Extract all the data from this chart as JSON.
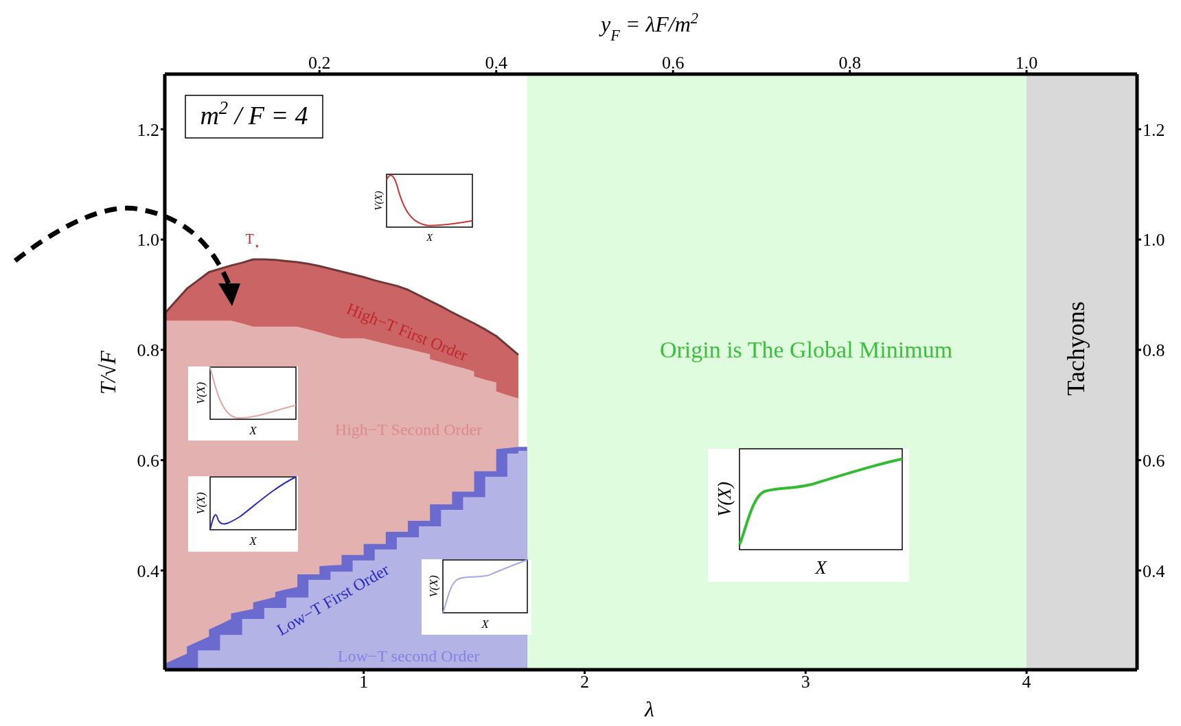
{
  "chart_data": {
    "type": "area",
    "xlabel": "λ",
    "ylabel": "T/√F",
    "x2label": "y$_{F}$ = λF/m$^{2}$",
    "xlim": [
      0.1,
      4.5
    ],
    "xticks": [
      1,
      2,
      3,
      4
    ],
    "x2lim": [
      0.025,
      1.125
    ],
    "x2ticks": [
      0.2,
      0.4,
      0.6,
      0.8,
      {
        "value": 1.0,
        "label": "1.0"
      }
    ],
    "ylim": [
      0.22,
      1.3
    ],
    "yticks": [
      0.4,
      0.6,
      0.8,
      {
        "value": 1.0,
        "label": "1.0"
      },
      1.2
    ],
    "y2lim": [
      0.22,
      1.3
    ],
    "y2ticks": [
      0.4,
      0.6,
      0.8,
      {
        "value": 1.0,
        "label": "1.0"
      },
      1.2
    ],
    "x": [
      0.1,
      0.2,
      0.2,
      0.25,
      0.25,
      0.3,
      0.3,
      0.35,
      0.35,
      0.4,
      0.4,
      0.45,
      0.45,
      0.5,
      0.5,
      0.55,
      0.55,
      0.6,
      0.6,
      0.65,
      0.65,
      0.7,
      0.7,
      0.75,
      0.75,
      0.8,
      0.8,
      0.85,
      0.85,
      0.9,
      0.9,
      0.95,
      0.95,
      1.0,
      1.0,
      1.05,
      1.05,
      1.1,
      1.1,
      1.15,
      1.15,
      1.2,
      1.2,
      1.25,
      1.25,
      1.3,
      1.3,
      1.35,
      1.35,
      1.4,
      1.4,
      1.45,
      1.45,
      1.5,
      1.5,
      1.55,
      1.55,
      1.6,
      1.6,
      1.65,
      1.65,
      1.7,
      1.7,
      1.74
    ],
    "series": [
      {
        "name": "High−T First Order",
        "color": "#cb6464",
        "values": [
          0.866,
          0.911,
          0.911,
          0.926,
          0.926,
          0.941,
          0.941,
          0.947,
          0.947,
          0.953,
          0.953,
          0.958,
          0.958,
          0.964,
          0.964,
          0.964,
          0.964,
          0.963,
          0.963,
          0.961,
          0.961,
          0.959,
          0.959,
          0.956,
          0.956,
          0.952,
          0.952,
          0.947,
          0.947,
          0.942,
          0.942,
          0.937,
          0.937,
          0.932,
          0.932,
          0.926,
          0.926,
          0.921,
          0.921,
          0.916,
          0.916,
          0.909,
          0.909,
          0.899,
          0.899,
          0.889,
          0.889,
          0.879,
          0.879,
          0.868,
          0.868,
          0.858,
          0.858,
          0.848,
          0.848,
          0.837,
          0.837,
          0.825,
          0.825,
          0.808,
          0.808,
          0.791,
          null,
          null
        ]
      },
      {
        "name": "High−T Second Order",
        "color": "#e4b1b1",
        "values": [
          0.853,
          0.853,
          0.853,
          0.853,
          0.853,
          0.853,
          0.853,
          0.853,
          0.853,
          0.853,
          0.853,
          0.848,
          0.848,
          0.842,
          0.842,
          0.842,
          0.842,
          0.842,
          0.842,
          0.842,
          0.842,
          0.842,
          0.842,
          0.837,
          0.837,
          0.832,
          0.832,
          0.826,
          0.826,
          0.821,
          0.821,
          0.821,
          0.821,
          0.821,
          0.821,
          0.816,
          0.816,
          0.811,
          0.811,
          0.806,
          0.806,
          0.802,
          0.802,
          0.797,
          0.797,
          0.792,
          0.783,
          0.778,
          0.778,
          0.772,
          0.772,
          0.767,
          0.767,
          0.761,
          0.752,
          0.746,
          0.746,
          0.741,
          0.725,
          0.718,
          0.718,
          0.712,
          null,
          null
        ]
      },
      {
        "name": "Low−T First Order",
        "color": "#6a6acf",
        "values": [
          0.231,
          0.249,
          0.262,
          0.271,
          0.271,
          0.28,
          0.293,
          0.302,
          0.302,
          0.312,
          0.322,
          0.326,
          0.326,
          0.33,
          0.342,
          0.347,
          0.347,
          0.352,
          0.361,
          0.366,
          0.366,
          0.37,
          0.393,
          0.393,
          0.393,
          0.393,
          0.408,
          0.409,
          0.409,
          0.41,
          0.428,
          0.428,
          0.428,
          0.428,
          0.448,
          0.448,
          0.448,
          0.448,
          0.47,
          0.47,
          0.47,
          0.47,
          0.49,
          0.49,
          0.49,
          0.49,
          0.52,
          0.52,
          0.52,
          0.52,
          0.543,
          0.543,
          0.543,
          0.543,
          0.58,
          0.58,
          0.58,
          0.58,
          0.62,
          0.622,
          0.622,
          0.624,
          0.624,
          0.624
        ]
      },
      {
        "name": "Low−T second Order",
        "color": "#b3b3e6",
        "values": [
          null,
          null,
          null,
          null,
          0.255,
          0.255,
          0.255,
          0.255,
          0.283,
          0.283,
          0.283,
          0.283,
          0.312,
          0.312,
          0.312,
          0.312,
          0.332,
          0.332,
          0.332,
          0.332,
          0.351,
          0.351,
          0.351,
          0.351,
          0.383,
          0.383,
          0.383,
          0.383,
          0.398,
          0.398,
          0.398,
          0.398,
          0.418,
          0.418,
          0.418,
          0.418,
          0.438,
          0.438,
          0.438,
          0.438,
          0.46,
          0.46,
          0.46,
          0.46,
          0.48,
          0.48,
          0.48,
          0.48,
          0.51,
          0.51,
          0.51,
          0.51,
          0.533,
          0.533,
          0.533,
          0.533,
          0.57,
          0.57,
          0.57,
          0.57,
          0.612,
          0.612,
          0.617,
          0.617
        ]
      }
    ],
    "bands": [
      {
        "axis": "x",
        "from": 1.74,
        "to": 4,
        "label": "Origin is The Global Minimum",
        "color": "#dffcdf"
      },
      {
        "axis": "x",
        "from": 4,
        "to": 4.5,
        "label": "Tachyons",
        "color": "#d9d9d9"
      }
    ],
    "annotations": [
      "m$^{2}$ / F = 4",
      "T$_{⋆}$",
      "V(X)",
      "X",
      "V(X)",
      "X",
      "V(X)",
      "X",
      "V(X)",
      "X",
      "V(X)",
      "X"
    ]
  }
}
